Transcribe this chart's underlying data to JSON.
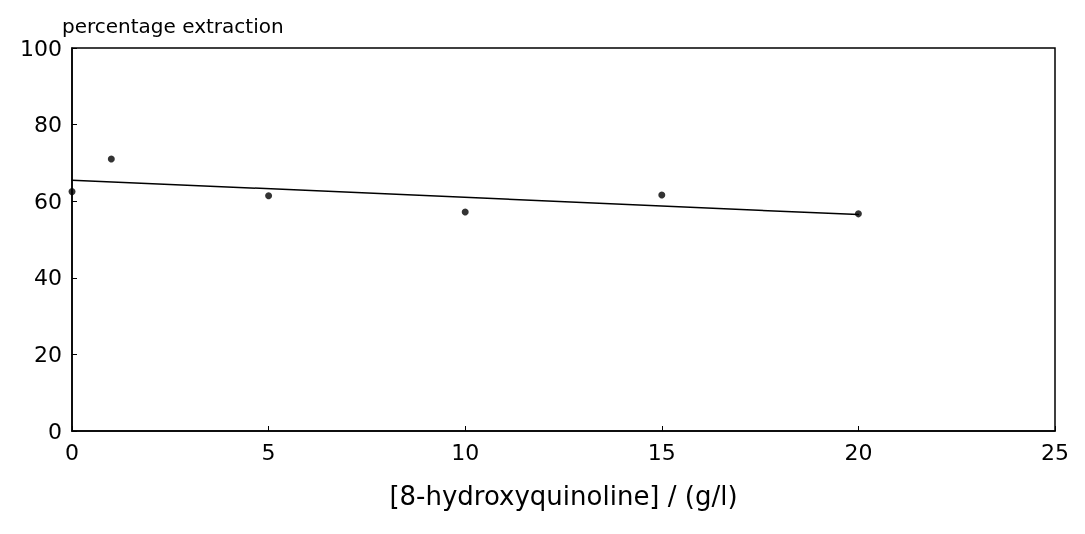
{
  "chart_data": {
    "type": "scatter",
    "xlabel": "[8-hydroxyquinoline] / (g/l)",
    "ylabel": "percentage extraction",
    "xlim": [
      0,
      25
    ],
    "xticks": [
      0,
      5,
      10,
      15,
      20,
      25
    ],
    "ylim": [
      0,
      100
    ],
    "yticks": [
      0,
      20,
      40,
      60,
      80,
      100
    ],
    "grid": false,
    "marker": "circle",
    "series": [
      {
        "color": "#000000",
        "x": [
          0,
          1,
          5,
          10,
          15,
          20
        ],
        "values": [
          62.5,
          71,
          61.4,
          57.2,
          61.6,
          56.7
        ]
      },
      {
        "type": "line",
        "color": "#000000",
        "line_style": "solid",
        "marker": "none",
        "x": [
          0,
          20
        ],
        "values": [
          65.5,
          56.5
        ]
      }
    ]
  }
}
